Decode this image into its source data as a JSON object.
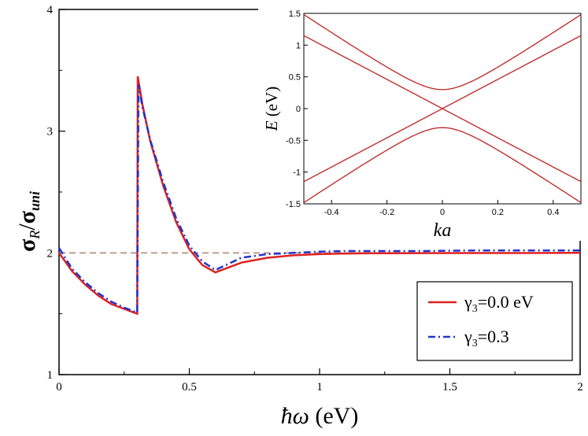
{
  "chart_data": {
    "main": {
      "type": "line",
      "xlabel_symbol": "ħω",
      "xlabel_unit": " (eV)",
      "ylabel_num": "σ",
      "ylabel_num_sub": "R",
      "ylabel_den": "σ",
      "ylabel_den_sub": "uni",
      "slash": "/",
      "xlim": [
        0,
        2
      ],
      "ylim": [
        1,
        4
      ],
      "xticks": [
        0,
        0.5,
        1,
        1.5,
        2
      ],
      "xtick_labels": [
        "0",
        "0.5",
        "1",
        "1.5",
        "2"
      ],
      "yticks": [
        1,
        2,
        3,
        4
      ],
      "ytick_labels": [
        "1",
        "2",
        "3",
        "4"
      ],
      "reference_line": {
        "y": 2,
        "style": "dashed",
        "color": "#b08070"
      },
      "series": [
        {
          "name": "γ3=0.0 eV",
          "legend_symbol": "γ",
          "legend_sub": "3",
          "legend_value": "=0.0 eV",
          "color": "#dd2222",
          "style": "solid",
          "x": [
            0,
            0.05,
            0.1,
            0.15,
            0.2,
            0.25,
            0.3,
            0.302,
            0.32,
            0.35,
            0.4,
            0.45,
            0.5,
            0.55,
            0.6,
            0.65,
            0.7,
            0.8,
            0.9,
            1.0,
            1.1,
            1.2,
            1.4,
            1.6,
            1.8,
            2.0
          ],
          "y": [
            2.0,
            1.85,
            1.74,
            1.65,
            1.58,
            1.54,
            1.5,
            3.45,
            3.22,
            2.92,
            2.55,
            2.25,
            2.03,
            1.9,
            1.84,
            1.88,
            1.92,
            1.96,
            1.98,
            1.99,
            1.995,
            1.997,
            1.998,
            1.999,
            1.999,
            2.0
          ]
        },
        {
          "name": "γ3=0.3",
          "legend_symbol": "γ",
          "legend_sub": "3",
          "legend_value": "=0.3",
          "color": "#2233cc",
          "style": "dashdot",
          "x": [
            0,
            0.05,
            0.1,
            0.15,
            0.2,
            0.25,
            0.3,
            0.305,
            0.32,
            0.35,
            0.4,
            0.45,
            0.5,
            0.55,
            0.6,
            0.65,
            0.7,
            0.8,
            0.9,
            1.0,
            1.1,
            1.2,
            1.4,
            1.6,
            1.8,
            2.0
          ],
          "y": [
            2.04,
            1.87,
            1.76,
            1.67,
            1.6,
            1.55,
            1.51,
            3.38,
            3.2,
            2.93,
            2.58,
            2.28,
            2.06,
            1.93,
            1.86,
            1.91,
            1.96,
            1.99,
            2.0,
            2.01,
            2.015,
            2.015,
            2.015,
            2.02,
            2.02,
            2.02
          ]
        }
      ]
    },
    "inset": {
      "type": "line",
      "xlabel": "ka",
      "ylabel_symbol": "E",
      "ylabel_unit": " (eV)",
      "xlim": [
        -0.5,
        0.5
      ],
      "ylim": [
        -1.5,
        1.5
      ],
      "xticks": [
        -0.4,
        -0.2,
        0,
        0.2,
        0.4
      ],
      "xtick_labels": [
        "-0.4",
        "-0.2",
        "0",
        "0.2",
        "0.4"
      ],
      "yticks": [
        -1.5,
        -1,
        -0.5,
        0,
        0.5,
        1,
        1.5
      ],
      "ytick_labels": [
        "-1.5",
        "-1",
        "-0.5",
        "0",
        "0.5",
        "1",
        "1.5"
      ],
      "color": "#c03030",
      "bands": [
        {
          "name": "upper gapped",
          "formula": "sqrt(0.09 + (2.9k)^2)",
          "gap": 0.3
        },
        {
          "name": "upper gapless",
          "formula": "2.3|k|",
          "gap": 0
        },
        {
          "name": "lower gapless",
          "formula": "-2.3|k|",
          "gap": 0
        },
        {
          "name": "lower gapped",
          "formula": "-sqrt(0.09 + (2.9k)^2)",
          "gap": -0.3
        }
      ]
    }
  }
}
